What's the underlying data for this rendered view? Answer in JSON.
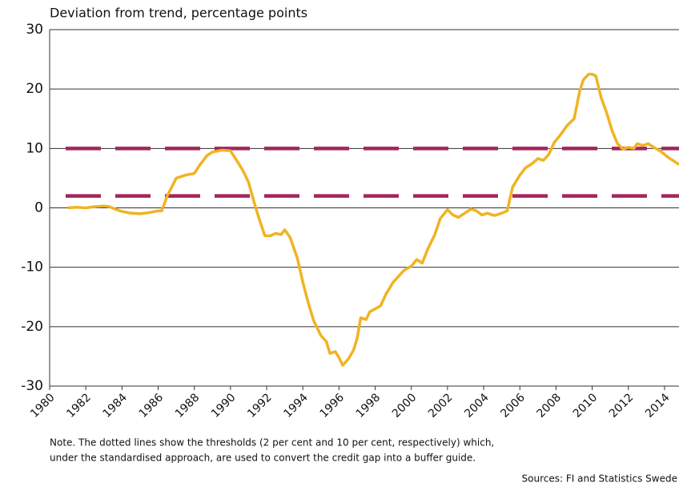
{
  "chart_data": {
    "type": "line",
    "title": "Deviation from trend, percentage points",
    "note": [
      "Note. The dotted lines show the thresholds (2 per cent and 10 per cent, respectively) which,",
      "under the standardised approach, are used to convert the credit gap into a buffer guide."
    ],
    "source": "Sources: FI and Statistics Swede",
    "x": [
      1981.0,
      1981.5,
      1982.0,
      1982.5,
      1983.0,
      1983.3,
      1983.7,
      1984.0,
      1984.5,
      1985.0,
      1985.5,
      1986.0,
      1986.2,
      1986.5,
      1986.8,
      1987.0,
      1987.5,
      1988.0,
      1988.3,
      1988.7,
      1989.0,
      1989.5,
      1990.0,
      1990.3,
      1990.7,
      1991.0,
      1991.3,
      1991.6,
      1991.9,
      1992.2,
      1992.5,
      1992.8,
      1993.0,
      1993.3,
      1993.7,
      1994.0,
      1994.3,
      1994.6,
      1995.0,
      1995.3,
      1995.5,
      1995.8,
      1996.0,
      1996.2,
      1996.5,
      1996.8,
      1997.0,
      1997.2,
      1997.5,
      1997.7,
      1998.0,
      1998.3,
      1998.6,
      1999.0,
      1999.3,
      1999.6,
      2000.0,
      2000.3,
      2000.6,
      2000.9,
      2001.3,
      2001.6,
      2002.0,
      2002.3,
      2002.6,
      2003.0,
      2003.3,
      2003.6,
      2003.9,
      2004.2,
      2004.6,
      2005.0,
      2005.3,
      2005.6,
      2006.0,
      2006.3,
      2006.7,
      2007.0,
      2007.3,
      2007.6,
      2007.9,
      2008.3,
      2008.6,
      2009.0,
      2009.3,
      2009.5,
      2009.8,
      2010.0,
      2010.2,
      2010.5,
      2010.8,
      2011.1,
      2011.4,
      2011.7,
      2012.0,
      2012.3,
      2012.5,
      2012.8,
      2013.1,
      2013.4,
      2013.8,
      2014.2,
      2014.8
    ],
    "series": [
      {
        "color": "#f0b323",
        "values": [
          0.0,
          0.1,
          0.0,
          0.2,
          0.3,
          0.2,
          -0.3,
          -0.6,
          -0.9,
          -1.0,
          -0.8,
          -0.5,
          -0.5,
          2.0,
          3.8,
          5.0,
          5.5,
          5.8,
          7.2,
          8.8,
          9.4,
          9.7,
          9.6,
          8.2,
          6.2,
          4.3,
          1.0,
          -2.0,
          -4.7,
          -4.7,
          -4.3,
          -4.5,
          -3.7,
          -5.0,
          -8.5,
          -12.5,
          -16.0,
          -19.0,
          -21.5,
          -22.5,
          -24.5,
          -24.2,
          -25.2,
          -26.5,
          -25.5,
          -24.0,
          -22.0,
          -18.5,
          -18.8,
          -17.5,
          -17.0,
          -16.5,
          -14.5,
          -12.5,
          -11.5,
          -10.5,
          -9.8,
          -8.7,
          -9.3,
          -7.0,
          -4.5,
          -1.8,
          -0.3,
          -1.2,
          -1.6,
          -0.8,
          -0.2,
          -0.5,
          -1.2,
          -0.9,
          -1.3,
          -0.9,
          -0.5,
          3.5,
          5.5,
          6.7,
          7.5,
          8.3,
          8.0,
          9.0,
          11.0,
          12.5,
          13.8,
          15.0,
          19.5,
          21.5,
          22.5,
          22.5,
          22.2,
          18.5,
          16.0,
          13.0,
          10.8,
          9.9,
          10.2,
          10.0,
          10.8,
          10.5,
          10.8,
          10.2,
          9.5,
          8.5,
          7.3
        ]
      }
    ],
    "reference_lines": [
      2,
      10
    ],
    "reference_color": "#a3265c",
    "xlim": [
      1980,
      2014.8
    ],
    "xticks": [
      1980,
      1982,
      1984,
      1986,
      1988,
      1990,
      1992,
      1994,
      1996,
      1998,
      2000,
      2002,
      2004,
      2006,
      2008,
      2010,
      2012,
      2014
    ],
    "ylim": [
      -30,
      30
    ],
    "yticks": [
      30,
      20,
      10,
      0,
      -10,
      -20,
      -30
    ],
    "grid": true
  }
}
